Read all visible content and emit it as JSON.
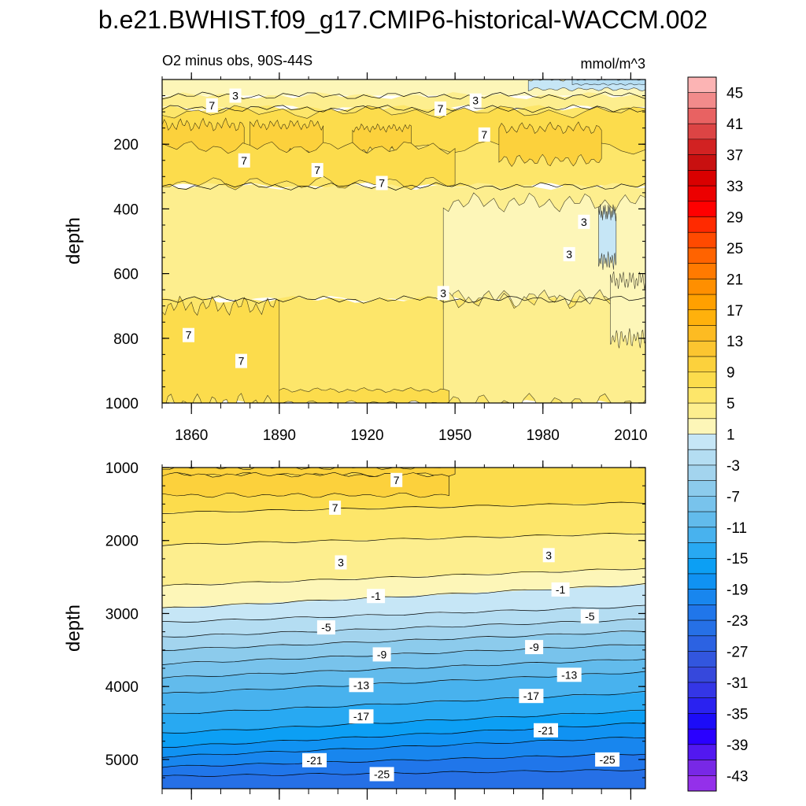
{
  "title": "b.e21.BWHIST.f09_g17.CMIP6-historical-WACCM.002",
  "chart_data": [
    {
      "type": "contour",
      "panel": "upper",
      "subtitle_left": "O2 minus obs, 90S-44S",
      "subtitle_right": "mmol/m^3",
      "ylabel": "depth",
      "xlabel": "",
      "xlim": [
        1850,
        2015
      ],
      "ylim": [
        1000,
        0
      ],
      "x_ticks": [
        1860,
        1890,
        1920,
        1950,
        1980,
        2010
      ],
      "x_tick_labels": [
        "1860",
        "1890",
        "1920",
        "1950",
        "1980",
        "2010"
      ],
      "y_ticks": [
        200,
        400,
        600,
        800,
        1000
      ],
      "y_tick_labels": [
        "200",
        "400",
        "600",
        "800",
        "1000"
      ],
      "bands": [
        {
          "level": 1,
          "y0": 0,
          "y1": 50
        },
        {
          "level": 3,
          "y0": 50,
          "y1": 90
        },
        {
          "level": 5,
          "y0": 90,
          "y1": 330
        },
        {
          "level": 3,
          "y0": 330,
          "y1": 680
        },
        {
          "level": 5,
          "y0": 680,
          "y1": 1000
        }
      ],
      "patches": [
        {
          "level": 7,
          "x0": 1850,
          "x1": 2015,
          "y0": 100,
          "y1": 210
        },
        {
          "level": 9,
          "x0": 1850,
          "x1": 1878,
          "y0": 140,
          "y1": 250
        },
        {
          "level": 9,
          "x0": 1880,
          "x1": 1905,
          "y0": 140,
          "y1": 230
        },
        {
          "level": 9,
          "x0": 1915,
          "x1": 1935,
          "y0": 150,
          "y1": 220
        },
        {
          "level": 9,
          "x0": 1965,
          "x1": 2000,
          "y0": 150,
          "y1": 250
        },
        {
          "level": 7,
          "x0": 1850,
          "x1": 1950,
          "y0": 210,
          "y1": 320
        },
        {
          "level": 1,
          "x0": 1946,
          "x1": 2015,
          "y0": 380,
          "y1": 680
        },
        {
          "level": 3,
          "x0": 1946,
          "x1": 2015,
          "y0": 680,
          "y1": 1000
        },
        {
          "level": 1,
          "x0": 2003,
          "x1": 2015,
          "y0": 620,
          "y1": 800
        },
        {
          "level": -1,
          "x0": 1975,
          "x1": 2015,
          "y0": 0,
          "y1": 30
        },
        {
          "level": -3,
          "x0": 1990,
          "x1": 2015,
          "y0": 0,
          "y1": 15
        },
        {
          "level": -1,
          "x0": 1999,
          "x1": 2005,
          "y0": 410,
          "y1": 560
        },
        {
          "level": 7,
          "x0": 1850,
          "x1": 1890,
          "y0": 700,
          "y1": 1000
        },
        {
          "level": 7,
          "x0": 1890,
          "x1": 1948,
          "y0": 960,
          "y1": 1000
        }
      ],
      "contour_labels": [
        {
          "text": "3",
          "x": 1875,
          "y": 50
        },
        {
          "text": "7",
          "x": 1867,
          "y": 80
        },
        {
          "text": "7",
          "x": 1945,
          "y": 90
        },
        {
          "text": "3",
          "x": 1957,
          "y": 65
        },
        {
          "text": "7",
          "x": 1960,
          "y": 170
        },
        {
          "text": "7",
          "x": 1878,
          "y": 250
        },
        {
          "text": "7",
          "x": 1903,
          "y": 280
        },
        {
          "text": "7",
          "x": 1925,
          "y": 320
        },
        {
          "text": "3",
          "x": 1994,
          "y": 440
        },
        {
          "text": "3",
          "x": 1989,
          "y": 540
        },
        {
          "text": "3",
          "x": 1946,
          "y": 660
        },
        {
          "text": "7",
          "x": 1859,
          "y": 790
        },
        {
          "text": "7",
          "x": 1877,
          "y": 870
        }
      ]
    },
    {
      "type": "contour",
      "panel": "lower",
      "ylabel": "depth",
      "xlim": [
        1850,
        2015
      ],
      "ylim": [
        5400,
        1000
      ],
      "y_ticks": [
        1000,
        2000,
        3000,
        4000,
        5000
      ],
      "y_tick_labels": [
        "1000",
        "2000",
        "3000",
        "4000",
        "5000"
      ],
      "bands": [
        {
          "level": 7,
          "y_left": 1000,
          "y_right": 1000
        },
        {
          "level": 5,
          "y_left": 1620,
          "y_right": 1480
        },
        {
          "level": 3,
          "y_left": 2060,
          "y_right": 1900
        },
        {
          "level": 1,
          "y_left": 2620,
          "y_right": 2380
        },
        {
          "level": -1,
          "y_left": 2930,
          "y_right": 2600
        },
        {
          "level": -3,
          "y_left": 3120,
          "y_right": 2900
        },
        {
          "level": -5,
          "y_left": 3320,
          "y_right": 3080
        },
        {
          "level": -7,
          "y_left": 3500,
          "y_right": 3240
        },
        {
          "level": -9,
          "y_left": 3690,
          "y_right": 3420
        },
        {
          "level": -11,
          "y_left": 3880,
          "y_right": 3620
        },
        {
          "level": -13,
          "y_left": 4100,
          "y_right": 3800
        },
        {
          "level": -15,
          "y_left": 4380,
          "y_right": 4080
        },
        {
          "level": -17,
          "y_left": 4640,
          "y_right": 4330
        },
        {
          "level": -19,
          "y_left": 4830,
          "y_right": 4500
        },
        {
          "level": -21,
          "y_left": 4960,
          "y_right": 4690
        },
        {
          "level": -23,
          "y_left": 5100,
          "y_right": 4920
        },
        {
          "level": -25,
          "y_left": 5230,
          "y_right": 5140
        }
      ],
      "patches": [
        {
          "level": 9,
          "x0": 1850,
          "x1": 1950,
          "y0": 1000,
          "y1": 1100
        },
        {
          "level": 9,
          "x0": 1850,
          "x1": 1948,
          "y0": 1100,
          "y1": 1380
        }
      ],
      "contour_labels": [
        {
          "text": "7",
          "x": 1930,
          "y": 1170
        },
        {
          "text": "7",
          "x": 1909,
          "y": 1550
        },
        {
          "text": "3",
          "x": 1911,
          "y": 2300
        },
        {
          "text": "3",
          "x": 1982,
          "y": 2200
        },
        {
          "text": "-1",
          "x": 1923,
          "y": 2760
        },
        {
          "text": "-1",
          "x": 1986,
          "y": 2670
        },
        {
          "text": "-5",
          "x": 1906,
          "y": 3190
        },
        {
          "text": "-5",
          "x": 1996,
          "y": 3040
        },
        {
          "text": "-9",
          "x": 1925,
          "y": 3560
        },
        {
          "text": "-9",
          "x": 1977,
          "y": 3460
        },
        {
          "text": "-13",
          "x": 1918,
          "y": 3980
        },
        {
          "text": "-13",
          "x": 1989,
          "y": 3840
        },
        {
          "text": "-17",
          "x": 1918,
          "y": 4410
        },
        {
          "text": "-17",
          "x": 1976,
          "y": 4130
        },
        {
          "text": "-21",
          "x": 1902,
          "y": 5010
        },
        {
          "text": "-21",
          "x": 1981,
          "y": 4600
        },
        {
          "text": "-25",
          "x": 1925,
          "y": 5200
        },
        {
          "text": "-25",
          "x": 2002,
          "y": 5000
        }
      ]
    }
  ],
  "colorbar": {
    "levels": [
      45,
      43,
      41,
      39,
      37,
      35,
      33,
      31,
      29,
      27,
      25,
      23,
      21,
      19,
      17,
      15,
      13,
      11,
      9,
      7,
      5,
      3,
      1,
      -1,
      -3,
      -5,
      -7,
      -9,
      -11,
      -13,
      -15,
      -17,
      -19,
      -21,
      -23,
      -25,
      -27,
      -29,
      -31,
      -33,
      -35,
      -37,
      -39,
      -41,
      -43,
      -45
    ],
    "labels": [
      "45",
      "41",
      "37",
      "33",
      "29",
      "25",
      "21",
      "17",
      "13",
      "9",
      "5",
      "1",
      "-3",
      "-7",
      "-11",
      "-15",
      "-19",
      "-23",
      "-27",
      "-31",
      "-35",
      "-39",
      "-43"
    ],
    "colors": [
      "#fcb4b4",
      "#f28b8b",
      "#e86262",
      "#dc4444",
      "#d22222",
      "#c81010",
      "#d90000",
      "#ec0000",
      "#ff0000",
      "#ff2a00",
      "#ff4a00",
      "#ff6300",
      "#ff7a00",
      "#ff8f00",
      "#ffa000",
      "#ffb10c",
      "#fdbb22",
      "#fcc530",
      "#fcd13c",
      "#fcdc4c",
      "#fde66a",
      "#fdee8e",
      "#fdf6b8",
      "#c6e6f6",
      "#b4ddf2",
      "#a3d4ee",
      "#8ccbec",
      "#78c3ec",
      "#62bbec",
      "#48b2ee",
      "#28a9f2",
      "#0c9ff4",
      "#1092f2",
      "#1886ee",
      "#2076ea",
      "#2670e6",
      "#2c62e2",
      "#3256de",
      "#3648dc",
      "#3436e6",
      "#2a22f0",
      "#1c0cf8",
      "#2a00ff",
      "#5218f0",
      "#7828e6",
      "#9430ea"
    ]
  }
}
